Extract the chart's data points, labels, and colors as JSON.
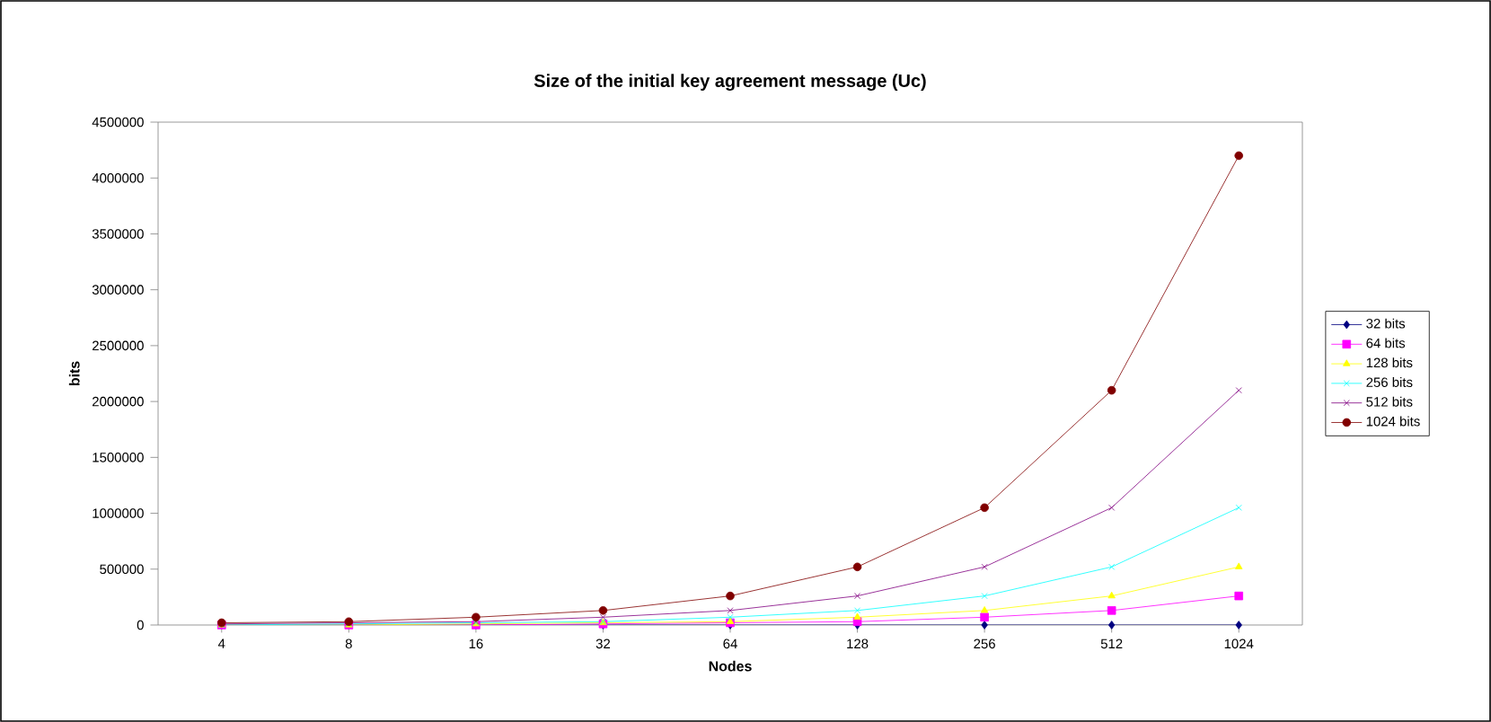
{
  "chart_data": {
    "type": "line",
    "title": "Size of the initial key agreement message (Uc)",
    "xlabel": "Nodes",
    "ylabel": "bits",
    "categories": [
      "4",
      "8",
      "16",
      "32",
      "64",
      "128",
      "256",
      "512",
      "1024"
    ],
    "series": [
      {
        "name": "32 bits",
        "color": "#000080",
        "marker": "diamond",
        "values": [
          0,
          0,
          0,
          0,
          0,
          0,
          0,
          0,
          0
        ]
      },
      {
        "name": "64 bits",
        "color": "#ff00ff",
        "marker": "square",
        "values": [
          0,
          0,
          0,
          10000,
          20000,
          30000,
          70000,
          130000,
          260000
        ]
      },
      {
        "name": "128 bits",
        "color": "#ffff00",
        "marker": "triangle",
        "values": [
          0,
          0,
          10000,
          20000,
          30000,
          70000,
          130000,
          260000,
          520000
        ]
      },
      {
        "name": "256 bits",
        "color": "#00ffff",
        "marker": "cross",
        "values": [
          0,
          10000,
          20000,
          30000,
          70000,
          130000,
          260000,
          520000,
          1050000
        ]
      },
      {
        "name": "512 bits",
        "color": "#800080",
        "marker": "cross",
        "values": [
          10000,
          20000,
          30000,
          70000,
          130000,
          260000,
          520000,
          1050000,
          2100000
        ]
      },
      {
        "name": "1024 bits",
        "color": "#800000",
        "marker": "circle",
        "values": [
          20000,
          30000,
          70000,
          130000,
          260000,
          520000,
          1050000,
          2100000,
          4200000
        ]
      }
    ],
    "ylim": [
      0,
      4500000
    ],
    "yticks": [
      0,
      500000,
      1000000,
      1500000,
      2000000,
      2500000,
      3000000,
      3500000,
      4000000,
      4500000
    ],
    "grid": false,
    "legend": "right",
    "line_style": "solid"
  }
}
